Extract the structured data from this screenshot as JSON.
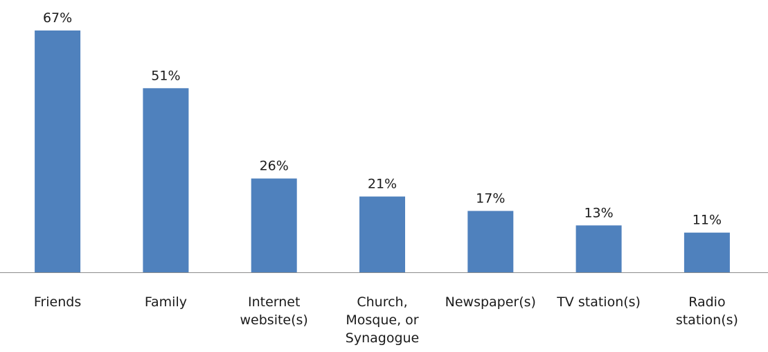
{
  "chart_data": {
    "type": "bar",
    "categories": [
      "Friends",
      "Family",
      "Internet website(s)",
      "Church, Mosque, or Synagogue",
      "Newspaper(s)",
      "TV station(s)",
      "Radio station(s)"
    ],
    "category_lines": [
      [
        "Friends"
      ],
      [
        "Family"
      ],
      [
        "Internet",
        "website(s)"
      ],
      [
        "Church,",
        "Mosque, or",
        "Synagogue"
      ],
      [
        "Newspaper(s)"
      ],
      [
        "TV station(s)"
      ],
      [
        "Radio",
        "station(s)"
      ]
    ],
    "values": [
      67,
      51,
      26,
      21,
      17,
      13,
      11
    ],
    "data_labels": [
      "67%",
      "51%",
      "26%",
      "21%",
      "17%",
      "13%",
      "11%"
    ],
    "value_unit": "%",
    "ylim": [
      0,
      67
    ],
    "title": "",
    "xlabel": "",
    "ylabel": "",
    "grid": false,
    "legend": "none",
    "colors": {
      "bar": "#4f81bd",
      "axis": "#8c8c8c",
      "text": "#1a1a1a"
    }
  }
}
